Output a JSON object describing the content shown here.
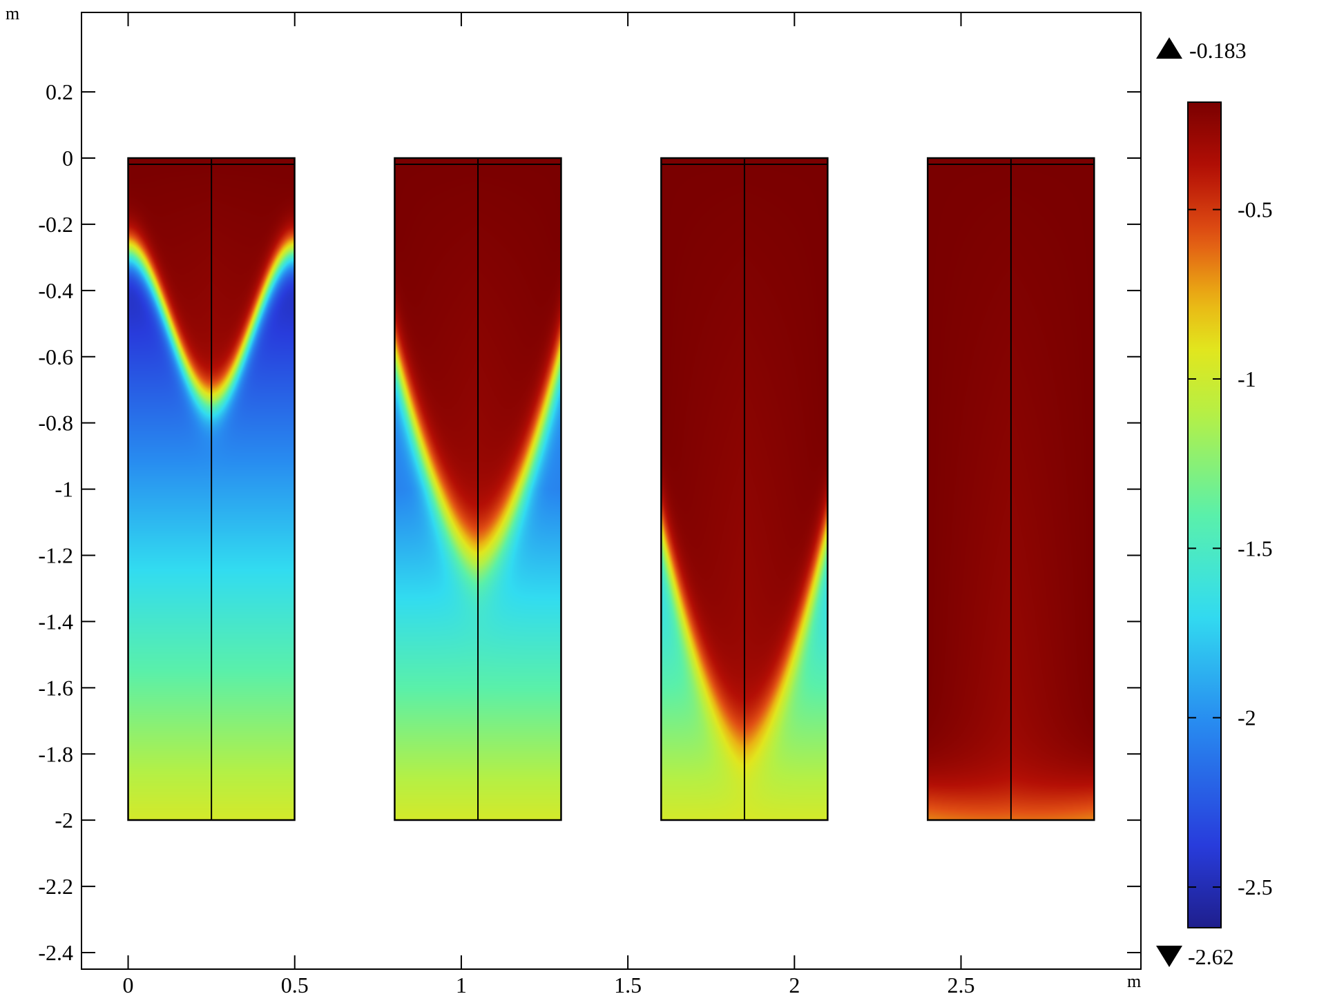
{
  "chart_data": {
    "type": "heatmap",
    "title": "",
    "x_unit": "m",
    "y_unit": "m",
    "xlim": [
      -0.14,
      3.04
    ],
    "ylim": [
      -2.45,
      0.44
    ],
    "x_ticks": [
      {
        "value": 0,
        "label": "0"
      },
      {
        "value": 0.5,
        "label": "0.5"
      },
      {
        "value": 1,
        "label": "1"
      },
      {
        "value": 1.5,
        "label": "1.5"
      },
      {
        "value": 2,
        "label": "2"
      },
      {
        "value": 2.5,
        "label": "2.5"
      }
    ],
    "y_ticks": [
      {
        "value": 0.2,
        "label": "0.2"
      },
      {
        "value": 0,
        "label": "0"
      },
      {
        "value": -0.2,
        "label": "-0.2"
      },
      {
        "value": -0.4,
        "label": "-0.4"
      },
      {
        "value": -0.6,
        "label": "-0.6"
      },
      {
        "value": -0.8,
        "label": "-0.8"
      },
      {
        "value": -1,
        "label": "-1"
      },
      {
        "value": -1.2,
        "label": "-1.2"
      },
      {
        "value": -1.4,
        "label": "-1.4"
      },
      {
        "value": -1.6,
        "label": "-1.6"
      },
      {
        "value": -1.8,
        "label": "-1.8"
      },
      {
        "value": -2,
        "label": "-2"
      },
      {
        "value": -2.2,
        "label": "-2.2"
      },
      {
        "value": -2.4,
        "label": "-2.4"
      }
    ],
    "panels": [
      {
        "x": [
          0,
          0.5
        ],
        "y": [
          -2,
          0
        ],
        "center_x": 0.25,
        "front_edge_depth": -0.29,
        "front_tip_depth": -0.74,
        "front_shape": "sigmoid",
        "bottom_value": -0.97,
        "top_value": -0.183
      },
      {
        "x": [
          0.8,
          1.3
        ],
        "y": [
          -2,
          0
        ],
        "center_x": 1.05,
        "front_edge_depth": -0.6,
        "front_tip_depth": -1.22,
        "front_shape": "parabolic",
        "bottom_value": -0.97,
        "top_value": -0.183
      },
      {
        "x": [
          1.6,
          2.1
        ],
        "y": [
          -2,
          0
        ],
        "center_x": 1.85,
        "front_edge_depth": -1.14,
        "front_tip_depth": -1.78,
        "front_shape": "parabolic",
        "bottom_value": -0.97,
        "top_value": -0.183
      },
      {
        "x": [
          2.4,
          2.9
        ],
        "y": [
          -2,
          0
        ],
        "center_x": 2.65,
        "front_edge_depth": -1.97,
        "front_tip_depth": -2.0,
        "front_shape": "parabolic",
        "bottom_value": -0.97,
        "top_value": -0.183
      }
    ],
    "colorbar": {
      "min": -2.62,
      "max": -0.183,
      "max_label": "-0.183",
      "min_label": "-2.62",
      "colormap": "rainbow (dark blue to dark red)",
      "ticks": [
        {
          "value": -0.5,
          "label": "-0.5"
        },
        {
          "value": -1,
          "label": "-1"
        },
        {
          "value": -1.5,
          "label": "-1.5"
        },
        {
          "value": -2,
          "label": "-2"
        },
        {
          "value": -2.5,
          "label": "-2.5"
        }
      ]
    },
    "colors": {
      "axis": "#000000",
      "high": "#7a0000",
      "low": "#1e1e8c"
    }
  }
}
